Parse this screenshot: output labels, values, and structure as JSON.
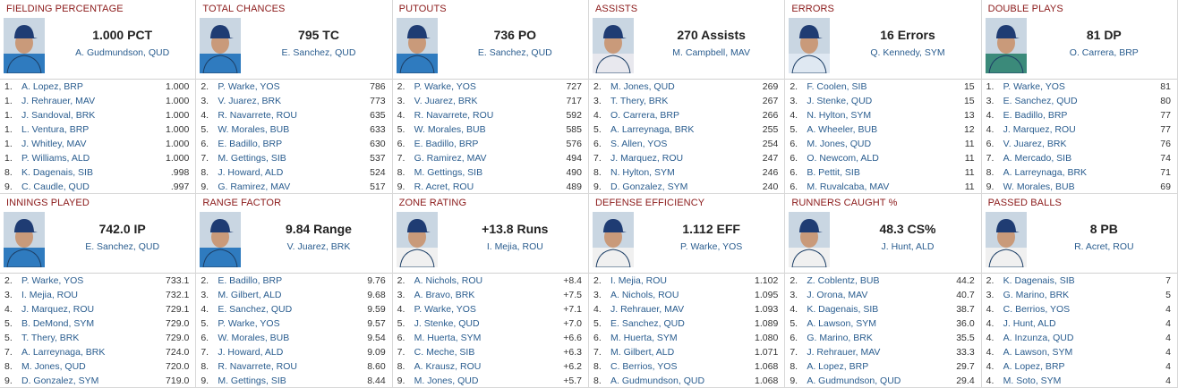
{
  "panels": [
    {
      "title": "FIELDING PERCENTAGE",
      "stat": "1.000 PCT",
      "leader": "A. Gudmundson, QUD",
      "rows": [
        [
          "1.",
          "A. Lopez, BRP",
          "1.000"
        ],
        [
          "1.",
          "J. Rehrauer, MAV",
          "1.000"
        ],
        [
          "1.",
          "J. Sandoval, BRK",
          "1.000"
        ],
        [
          "1.",
          "L. Ventura, BRP",
          "1.000"
        ],
        [
          "1.",
          "J. Whitley, MAV",
          "1.000"
        ],
        [
          "1.",
          "P. Williams, ALD",
          "1.000"
        ],
        [
          "8.",
          "K. Dagenais, SIB",
          ".998"
        ],
        [
          "9.",
          "C. Caudle, QUD",
          ".997"
        ]
      ]
    },
    {
      "title": "TOTAL CHANCES",
      "stat": "795 TC",
      "leader": "E. Sanchez, QUD",
      "rows": [
        [
          "2.",
          "P. Warke, YOS",
          "786"
        ],
        [
          "3.",
          "V. Juarez, BRK",
          "773"
        ],
        [
          "4.",
          "R. Navarrete, ROU",
          "635"
        ],
        [
          "5.",
          "W. Morales, BUB",
          "633"
        ],
        [
          "6.",
          "E. Badillo, BRP",
          "630"
        ],
        [
          "7.",
          "M. Gettings, SIB",
          "537"
        ],
        [
          "8.",
          "J. Howard, ALD",
          "524"
        ],
        [
          "9.",
          "G. Ramirez, MAV",
          "517"
        ]
      ]
    },
    {
      "title": "PUTOUTS",
      "stat": "736 PO",
      "leader": "E. Sanchez, QUD",
      "rows": [
        [
          "2.",
          "P. Warke, YOS",
          "727"
        ],
        [
          "3.",
          "V. Juarez, BRK",
          "717"
        ],
        [
          "4.",
          "R. Navarrete, ROU",
          "592"
        ],
        [
          "5.",
          "W. Morales, BUB",
          "585"
        ],
        [
          "6.",
          "E. Badillo, BRP",
          "576"
        ],
        [
          "7.",
          "G. Ramirez, MAV",
          "494"
        ],
        [
          "8.",
          "M. Gettings, SIB",
          "490"
        ],
        [
          "9.",
          "R. Acret, ROU",
          "489"
        ]
      ]
    },
    {
      "title": "ASSISTS",
      "stat": "270 Assists",
      "leader": "M. Campbell, MAV",
      "rows": [
        [
          "2.",
          "M. Jones, QUD",
          "269"
        ],
        [
          "3.",
          "T. Thery, BRK",
          "267"
        ],
        [
          "4.",
          "O. Carrera, BRP",
          "266"
        ],
        [
          "5.",
          "A. Larreynaga, BRK",
          "255"
        ],
        [
          "6.",
          "S. Allen, YOS",
          "254"
        ],
        [
          "7.",
          "J. Marquez, ROU",
          "247"
        ],
        [
          "8.",
          "N. Hylton, SYM",
          "246"
        ],
        [
          "9.",
          "D. Gonzalez, SYM",
          "240"
        ]
      ]
    },
    {
      "title": "ERRORS",
      "stat": "16 Errors",
      "leader": "Q. Kennedy, SYM",
      "rows": [
        [
          "2.",
          "F. Coolen, SIB",
          "15"
        ],
        [
          "3.",
          "J. Stenke, QUD",
          "15"
        ],
        [
          "4.",
          "N. Hylton, SYM",
          "13"
        ],
        [
          "5.",
          "A. Wheeler, BUB",
          "12"
        ],
        [
          "6.",
          "M. Jones, QUD",
          "11"
        ],
        [
          "6.",
          "O. Newcom, ALD",
          "11"
        ],
        [
          "6.",
          "B. Pettit, SIB",
          "11"
        ],
        [
          "6.",
          "M. Ruvalcaba, MAV",
          "11"
        ]
      ]
    },
    {
      "title": "DOUBLE PLAYS",
      "stat": "81 DP",
      "leader": "O. Carrera, BRP",
      "rows": [
        [
          "1.",
          "P. Warke, YOS",
          "81"
        ],
        [
          "3.",
          "E. Sanchez, QUD",
          "80"
        ],
        [
          "4.",
          "E. Badillo, BRP",
          "77"
        ],
        [
          "4.",
          "J. Marquez, ROU",
          "77"
        ],
        [
          "6.",
          "V. Juarez, BRK",
          "76"
        ],
        [
          "7.",
          "A. Mercado, SIB",
          "74"
        ],
        [
          "8.",
          "A. Larreynaga, BRK",
          "71"
        ],
        [
          "9.",
          "W. Morales, BUB",
          "69"
        ]
      ]
    },
    {
      "title": "INNINGS PLAYED",
      "stat": "742.0 IP",
      "leader": "E. Sanchez, QUD",
      "rows": [
        [
          "2.",
          "P. Warke, YOS",
          "733.1"
        ],
        [
          "3.",
          "I. Mejia, ROU",
          "732.1"
        ],
        [
          "4.",
          "J. Marquez, ROU",
          "729.1"
        ],
        [
          "5.",
          "B. DeMond, SYM",
          "729.0"
        ],
        [
          "5.",
          "T. Thery, BRK",
          "729.0"
        ],
        [
          "7.",
          "A. Larreynaga, BRK",
          "724.0"
        ],
        [
          "8.",
          "M. Jones, QUD",
          "720.0"
        ],
        [
          "9.",
          "D. Gonzalez, SYM",
          "719.0"
        ]
      ]
    },
    {
      "title": "RANGE FACTOR",
      "stat": "9.84 Range",
      "leader": "V. Juarez, BRK",
      "rows": [
        [
          "2.",
          "E. Badillo, BRP",
          "9.76"
        ],
        [
          "3.",
          "M. Gilbert, ALD",
          "9.68"
        ],
        [
          "4.",
          "E. Sanchez, QUD",
          "9.59"
        ],
        [
          "5.",
          "P. Warke, YOS",
          "9.57"
        ],
        [
          "6.",
          "W. Morales, BUB",
          "9.54"
        ],
        [
          "7.",
          "J. Howard, ALD",
          "9.09"
        ],
        [
          "8.",
          "R. Navarrete, ROU",
          "8.60"
        ],
        [
          "9.",
          "M. Gettings, SIB",
          "8.44"
        ]
      ]
    },
    {
      "title": "ZONE RATING",
      "stat": "+13.8 Runs",
      "leader": "I. Mejia, ROU",
      "rows": [
        [
          "2.",
          "A. Nichols, ROU",
          "+8.4"
        ],
        [
          "3.",
          "A. Bravo, BRK",
          "+7.5"
        ],
        [
          "4.",
          "P. Warke, YOS",
          "+7.1"
        ],
        [
          "5.",
          "J. Stenke, QUD",
          "+7.0"
        ],
        [
          "6.",
          "M. Huerta, SYM",
          "+6.6"
        ],
        [
          "7.",
          "C. Meche, SIB",
          "+6.3"
        ],
        [
          "8.",
          "A. Krausz, ROU",
          "+6.2"
        ],
        [
          "9.",
          "M. Jones, QUD",
          "+5.7"
        ]
      ]
    },
    {
      "title": "DEFENSE EFFICIENCY",
      "stat": "1.112 EFF",
      "leader": "P. Warke, YOS",
      "rows": [
        [
          "2.",
          "I. Mejia, ROU",
          "1.102"
        ],
        [
          "3.",
          "A. Nichols, ROU",
          "1.095"
        ],
        [
          "4.",
          "J. Rehrauer, MAV",
          "1.093"
        ],
        [
          "5.",
          "E. Sanchez, QUD",
          "1.089"
        ],
        [
          "6.",
          "M. Huerta, SYM",
          "1.080"
        ],
        [
          "7.",
          "M. Gilbert, ALD",
          "1.071"
        ],
        [
          "8.",
          "C. Berrios, YOS",
          "1.068"
        ],
        [
          "8.",
          "A. Gudmundson, QUD",
          "1.068"
        ]
      ]
    },
    {
      "title": "RUNNERS CAUGHT %",
      "stat": "48.3 CS%",
      "leader": "J. Hunt, ALD",
      "rows": [
        [
          "2.",
          "Z. Coblentz, BUB",
          "44.2"
        ],
        [
          "3.",
          "J. Orona, MAV",
          "40.7"
        ],
        [
          "4.",
          "K. Dagenais, SIB",
          "38.7"
        ],
        [
          "5.",
          "A. Lawson, SYM",
          "36.0"
        ],
        [
          "6.",
          "G. Marino, BRK",
          "35.5"
        ],
        [
          "7.",
          "J. Rehrauer, MAV",
          "33.3"
        ],
        [
          "8.",
          "A. Lopez, BRP",
          "29.7"
        ],
        [
          "9.",
          "A. Gudmundson, QUD",
          "29.4"
        ]
      ]
    },
    {
      "title": "PASSED BALLS",
      "stat": "8 PB",
      "leader": "R. Acret, ROU",
      "rows": [
        [
          "2.",
          "K. Dagenais, SIB",
          "7"
        ],
        [
          "3.",
          "G. Marino, BRK",
          "5"
        ],
        [
          "4.",
          "C. Berrios, YOS",
          "4"
        ],
        [
          "4.",
          "J. Hunt, ALD",
          "4"
        ],
        [
          "4.",
          "A. Inzunza, QUD",
          "4"
        ],
        [
          "4.",
          "A. Lawson, SYM",
          "4"
        ],
        [
          "4.",
          "A. Lopez, BRP",
          "4"
        ],
        [
          "4.",
          "M. Soto, SYM",
          "4"
        ]
      ]
    }
  ]
}
